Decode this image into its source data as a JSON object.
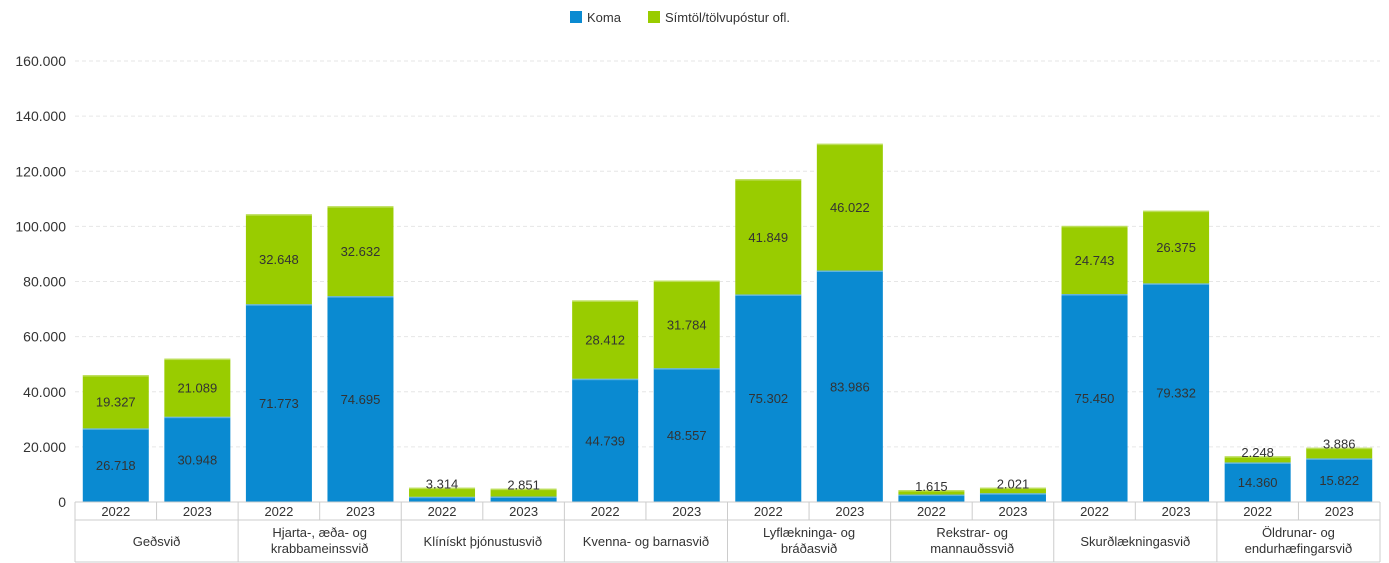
{
  "chart_data": {
    "type": "bar",
    "stacked": true,
    "title": "",
    "xlabel": "",
    "ylabel": "",
    "ylim": [
      0,
      160000
    ],
    "yticks": [
      0,
      20000,
      40000,
      60000,
      80000,
      100000,
      120000,
      140000,
      160000
    ],
    "ytick_labels": [
      "0",
      "20.000",
      "40.000",
      "60.000",
      "80.000",
      "100.000",
      "120.000",
      "140.000",
      "160.000"
    ],
    "grid": true,
    "legend_position": "top-center",
    "colors": {
      "Koma": "#0a8ad1",
      "Símtöl/tölvupóstur ofl.": "#99cc00"
    },
    "groups": [
      {
        "label": [
          "Geðsvið"
        ],
        "years": [
          "2022",
          "2023"
        ]
      },
      {
        "label": [
          "Hjarta-, æða- og",
          "krabbameinssvið"
        ],
        "years": [
          "2022",
          "2023"
        ]
      },
      {
        "label": [
          "Klínískt þjónustusvið"
        ],
        "years": [
          "2022",
          "2023"
        ]
      },
      {
        "label": [
          "Kvenna- og barnasvið"
        ],
        "years": [
          "2022",
          "2023"
        ]
      },
      {
        "label": [
          "Lyflækninga- og",
          "bráðasvið"
        ],
        "years": [
          "2022",
          "2023"
        ]
      },
      {
        "label": [
          "Rekstrar- og",
          "mannauðssvið"
        ],
        "years": [
          "2022",
          "2023"
        ]
      },
      {
        "label": [
          "Skurðlækningasvið"
        ],
        "years": [
          "2022",
          "2023"
        ]
      },
      {
        "label": [
          "Öldrunar- og",
          "endurhæfingarsvið"
        ],
        "years": [
          "2022",
          "2023"
        ]
      }
    ],
    "series": [
      {
        "name": "Koma",
        "values": [
          26718,
          30948,
          71773,
          74695,
          1900,
          2000,
          44739,
          48557,
          75302,
          83986,
          2700,
          3200,
          75450,
          79332,
          14360,
          15822
        ],
        "labels": [
          "26.718",
          "30.948",
          "71.773",
          "74.695",
          "",
          "",
          "44.739",
          "48.557",
          "75.302",
          "83.986",
          "",
          "",
          "75.450",
          "79.332",
          "14.360",
          "15.822"
        ]
      },
      {
        "name": "Símtöl/tölvupóstur ofl.",
        "values": [
          19327,
          21089,
          32648,
          32632,
          3314,
          2851,
          28412,
          31784,
          41849,
          46022,
          1615,
          2021,
          24743,
          26375,
          2248,
          3886
        ],
        "labels": [
          "19.327",
          "21.089",
          "32.648",
          "32.632",
          "3.314",
          "2.851",
          "28.412",
          "31.784",
          "41.849",
          "46.022",
          "1.615",
          "2.021",
          "24.743",
          "26.375",
          "2.248",
          "3.886"
        ]
      }
    ]
  }
}
